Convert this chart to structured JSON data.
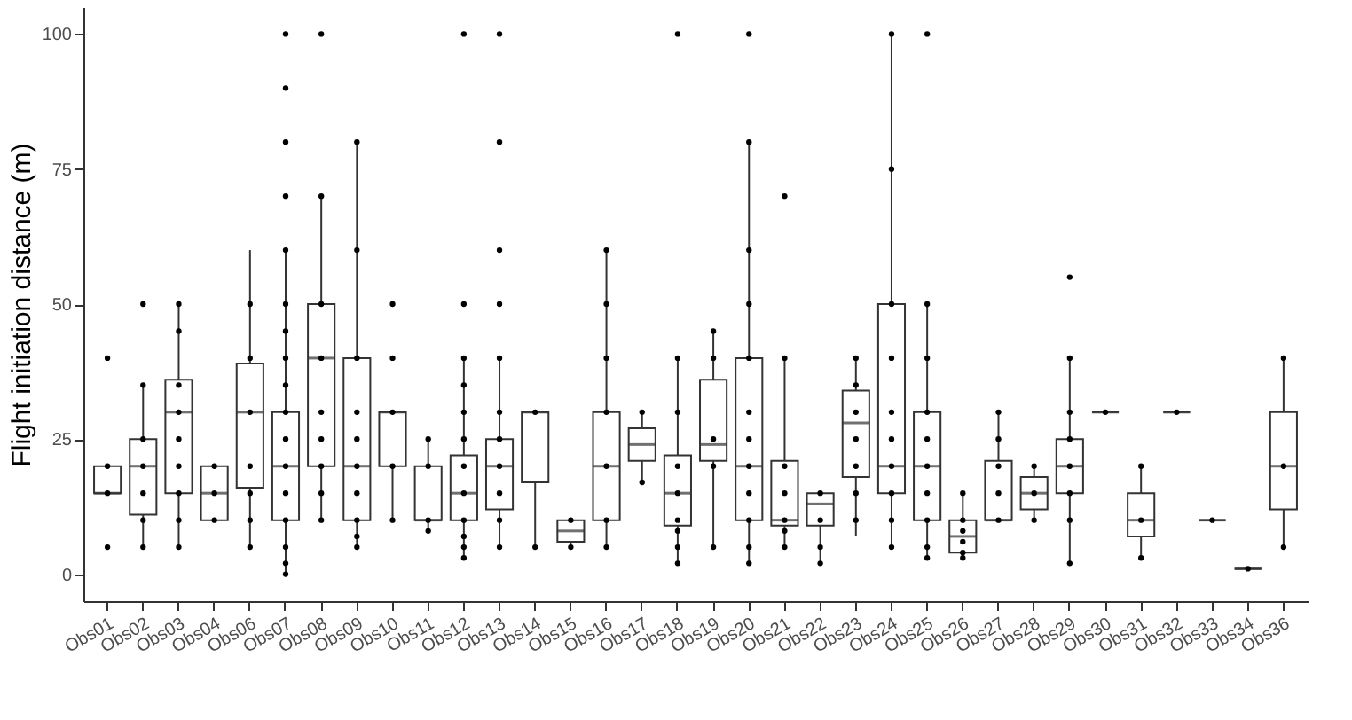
{
  "chart_data": {
    "type": "box",
    "ylabel": "Flight initiation distance (m)",
    "ylim": [
      -5,
      105
    ],
    "yticks": [
      0,
      25,
      50,
      75,
      100
    ],
    "grid": false,
    "color": "#333333",
    "categories": [
      "Obs01",
      "Obs02",
      "Obs03",
      "Obs04",
      "Obs06",
      "Obs07",
      "Obs08",
      "Obs09",
      "Obs10",
      "Obs11",
      "Obs12",
      "Obs13",
      "Obs14",
      "Obs15",
      "Obs16",
      "Obs17",
      "Obs18",
      "Obs19",
      "Obs20",
      "Obs21",
      "Obs22",
      "Obs23",
      "Obs24",
      "Obs25",
      "Obs26",
      "Obs27",
      "Obs28",
      "Obs29",
      "Obs30",
      "Obs31",
      "Obs32",
      "Obs33",
      "Obs34",
      "Obs36"
    ],
    "boxes": [
      {
        "low": 15,
        "q1": 15,
        "median": 15,
        "q3": 20,
        "high": 20
      },
      {
        "low": 5,
        "q1": 11,
        "median": 20,
        "q3": 25,
        "high": 35
      },
      {
        "low": 5,
        "q1": 15,
        "median": 30,
        "q3": 36,
        "high": 50
      },
      {
        "low": 10,
        "q1": 10,
        "median": 15,
        "q3": 20,
        "high": 20
      },
      {
        "low": 5,
        "q1": 16,
        "median": 30,
        "q3": 39,
        "high": 60
      },
      {
        "low": 0,
        "q1": 10,
        "median": 20,
        "q3": 30,
        "high": 60
      },
      {
        "low": 10,
        "q1": 20,
        "median": 40,
        "q3": 50,
        "high": 70
      },
      {
        "low": 5,
        "q1": 10,
        "median": 20,
        "q3": 40,
        "high": 80
      },
      {
        "low": 10,
        "q1": 20,
        "median": 30,
        "q3": 30,
        "high": 30
      },
      {
        "low": 8,
        "q1": 10,
        "median": 10,
        "q3": 20,
        "high": 25
      },
      {
        "low": 3,
        "q1": 10,
        "median": 15,
        "q3": 22,
        "high": 40
      },
      {
        "low": 5,
        "q1": 12,
        "median": 20,
        "q3": 25,
        "high": 40
      },
      {
        "low": 5,
        "q1": 17,
        "median": 30,
        "q3": 30,
        "high": 30
      },
      {
        "low": 5,
        "q1": 6,
        "median": 8,
        "q3": 10,
        "high": 10
      },
      {
        "low": 5,
        "q1": 10,
        "median": 20,
        "q3": 30,
        "high": 60
      },
      {
        "low": 17,
        "q1": 21,
        "median": 24,
        "q3": 27,
        "high": 30
      },
      {
        "low": 2,
        "q1": 9,
        "median": 15,
        "q3": 22,
        "high": 40
      },
      {
        "low": 5,
        "q1": 21,
        "median": 24,
        "q3": 36,
        "high": 45
      },
      {
        "low": 2,
        "q1": 10,
        "median": 20,
        "q3": 40,
        "high": 80
      },
      {
        "low": 5,
        "q1": 9,
        "median": 10,
        "q3": 21,
        "high": 40
      },
      {
        "low": 2,
        "q1": 9,
        "median": 13,
        "q3": 15,
        "high": 15
      },
      {
        "low": 7,
        "q1": 18,
        "median": 28,
        "q3": 34,
        "high": 40
      },
      {
        "low": 5,
        "q1": 15,
        "median": 20,
        "q3": 50,
        "high": 100
      },
      {
        "low": 3,
        "q1": 10,
        "median": 20,
        "q3": 30,
        "high": 50
      },
      {
        "low": 3,
        "q1": 4,
        "median": 7,
        "q3": 10,
        "high": 15
      },
      {
        "low": 10,
        "q1": 10,
        "median": 10,
        "q3": 21,
        "high": 30
      },
      {
        "low": 10,
        "q1": 12,
        "median": 15,
        "q3": 18,
        "high": 20
      },
      {
        "low": 2,
        "q1": 15,
        "median": 20,
        "q3": 25,
        "high": 40
      },
      {
        "low": 30,
        "q1": 30,
        "median": 30,
        "q3": 30,
        "high": 30
      },
      {
        "low": 3,
        "q1": 7,
        "median": 10,
        "q3": 15,
        "high": 20
      },
      {
        "low": 30,
        "q1": 30,
        "median": 30,
        "q3": 30,
        "high": 30
      },
      {
        "low": 10,
        "q1": 10,
        "median": 10,
        "q3": 10,
        "high": 10
      },
      {
        "low": 1,
        "q1": 1,
        "median": 1,
        "q3": 1,
        "high": 1
      },
      {
        "low": 5,
        "q1": 12,
        "median": 20,
        "q3": 30,
        "high": 40
      }
    ],
    "series": [
      {
        "type": "scatter",
        "color": "#000000",
        "x": [
          "Obs01",
          "Obs01",
          "Obs01",
          "Obs01",
          "Obs02",
          "Obs02",
          "Obs02",
          "Obs02",
          "Obs02",
          "Obs02",
          "Obs02",
          "Obs03",
          "Obs03",
          "Obs03",
          "Obs03",
          "Obs03",
          "Obs03",
          "Obs03",
          "Obs03",
          "Obs03",
          "Obs04",
          "Obs04",
          "Obs04",
          "Obs06",
          "Obs06",
          "Obs06",
          "Obs06",
          "Obs06",
          "Obs06",
          "Obs06",
          "Obs07",
          "Obs07",
          "Obs07",
          "Obs07",
          "Obs07",
          "Obs07",
          "Obs07",
          "Obs07",
          "Obs07",
          "Obs07",
          "Obs07",
          "Obs07",
          "Obs07",
          "Obs07",
          "Obs07",
          "Obs07",
          "Obs07",
          "Obs08",
          "Obs08",
          "Obs08",
          "Obs08",
          "Obs08",
          "Obs08",
          "Obs08",
          "Obs08",
          "Obs08",
          "Obs09",
          "Obs09",
          "Obs09",
          "Obs09",
          "Obs09",
          "Obs09",
          "Obs09",
          "Obs09",
          "Obs09",
          "Obs09",
          "Obs10",
          "Obs10",
          "Obs10",
          "Obs10",
          "Obs10",
          "Obs11",
          "Obs11",
          "Obs11",
          "Obs11",
          "Obs12",
          "Obs12",
          "Obs12",
          "Obs12",
          "Obs12",
          "Obs12",
          "Obs12",
          "Obs12",
          "Obs12",
          "Obs12",
          "Obs12",
          "Obs12",
          "Obs13",
          "Obs13",
          "Obs13",
          "Obs13",
          "Obs13",
          "Obs13",
          "Obs13",
          "Obs13",
          "Obs13",
          "Obs13",
          "Obs13",
          "Obs14",
          "Obs14",
          "Obs15",
          "Obs15",
          "Obs16",
          "Obs16",
          "Obs16",
          "Obs16",
          "Obs16",
          "Obs16",
          "Obs16",
          "Obs17",
          "Obs17",
          "Obs18",
          "Obs18",
          "Obs18",
          "Obs18",
          "Obs18",
          "Obs18",
          "Obs18",
          "Obs18",
          "Obs18",
          "Obs19",
          "Obs19",
          "Obs19",
          "Obs19",
          "Obs19",
          "Obs20",
          "Obs20",
          "Obs20",
          "Obs20",
          "Obs20",
          "Obs20",
          "Obs20",
          "Obs20",
          "Obs20",
          "Obs20",
          "Obs20",
          "Obs20",
          "Obs21",
          "Obs21",
          "Obs21",
          "Obs21",
          "Obs21",
          "Obs21",
          "Obs21",
          "Obs22",
          "Obs22",
          "Obs22",
          "Obs22",
          "Obs23",
          "Obs23",
          "Obs23",
          "Obs23",
          "Obs23",
          "Obs23",
          "Obs23",
          "Obs24",
          "Obs24",
          "Obs24",
          "Obs24",
          "Obs24",
          "Obs24",
          "Obs24",
          "Obs24",
          "Obs24",
          "Obs24",
          "Obs25",
          "Obs25",
          "Obs25",
          "Obs25",
          "Obs25",
          "Obs25",
          "Obs25",
          "Obs25",
          "Obs25",
          "Obs25",
          "Obs26",
          "Obs26",
          "Obs26",
          "Obs26",
          "Obs26",
          "Obs26",
          "Obs27",
          "Obs27",
          "Obs27",
          "Obs27",
          "Obs27",
          "Obs28",
          "Obs28",
          "Obs28",
          "Obs29",
          "Obs29",
          "Obs29",
          "Obs29",
          "Obs29",
          "Obs29",
          "Obs29",
          "Obs29",
          "Obs30",
          "Obs31",
          "Obs31",
          "Obs31",
          "Obs32",
          "Obs33",
          "Obs34",
          "Obs36",
          "Obs36",
          "Obs36"
        ],
        "values": [
          5,
          15,
          20,
          40,
          5,
          10,
          15,
          20,
          25,
          35,
          50,
          5,
          10,
          15,
          20,
          25,
          30,
          35,
          45,
          50,
          10,
          15,
          20,
          5,
          10,
          15,
          20,
          30,
          40,
          50,
          0,
          2,
          5,
          10,
          15,
          20,
          25,
          30,
          35,
          40,
          45,
          50,
          60,
          70,
          80,
          90,
          100,
          10,
          15,
          20,
          25,
          30,
          40,
          50,
          70,
          100,
          5,
          7,
          10,
          15,
          20,
          25,
          30,
          40,
          60,
          80,
          10,
          20,
          30,
          40,
          50,
          8,
          10,
          20,
          25,
          3,
          5,
          7,
          10,
          15,
          20,
          25,
          30,
          35,
          40,
          50,
          100,
          5,
          10,
          15,
          20,
          25,
          30,
          40,
          50,
          60,
          80,
          100,
          5,
          30,
          5,
          10,
          5,
          10,
          20,
          30,
          40,
          50,
          60,
          17,
          30,
          2,
          5,
          8,
          10,
          15,
          20,
          30,
          40,
          100,
          5,
          20,
          25,
          40,
          45,
          2,
          5,
          10,
          15,
          20,
          25,
          30,
          40,
          50,
          60,
          80,
          100,
          5,
          8,
          10,
          15,
          20,
          40,
          70,
          2,
          5,
          10,
          15,
          10,
          15,
          20,
          25,
          30,
          35,
          40,
          5,
          10,
          15,
          20,
          25,
          30,
          40,
          50,
          75,
          100,
          3,
          5,
          10,
          15,
          20,
          25,
          30,
          40,
          50,
          100,
          3,
          4,
          6,
          8,
          10,
          15,
          10,
          15,
          20,
          25,
          30,
          10,
          15,
          20,
          2,
          10,
          15,
          20,
          25,
          30,
          40,
          55,
          30,
          3,
          10,
          20,
          30,
          10,
          1,
          5,
          20,
          40
        ]
      }
    ]
  }
}
